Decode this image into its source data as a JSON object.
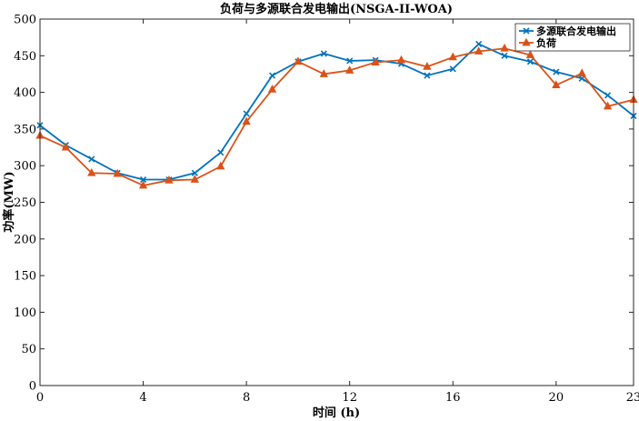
{
  "chart_data": {
    "type": "line",
    "title": "负荷与多源联合发电输出(NSGA-II-WOA)",
    "xlabel": "时间 (h)",
    "ylabel": "功率(MW)",
    "xlim": [
      0,
      23
    ],
    "ylim": [
      0,
      500
    ],
    "xticks": [
      0,
      4,
      8,
      12,
      16,
      20,
      23
    ],
    "yticks": [
      0,
      50,
      100,
      150,
      200,
      250,
      300,
      350,
      400,
      450,
      500
    ],
    "grid": false,
    "legend_position": "top-right",
    "x": [
      0,
      1,
      2,
      3,
      4,
      5,
      6,
      7,
      8,
      9,
      10,
      11,
      12,
      13,
      14,
      15,
      16,
      17,
      18,
      19,
      20,
      21,
      22,
      23
    ],
    "series": [
      {
        "name": "多源联合发电输出",
        "color": "#0072BD",
        "marker": "x",
        "values": [
          355,
          328,
          309,
          290,
          281,
          281,
          290,
          318,
          371,
          423,
          442,
          453,
          443,
          444,
          439,
          423,
          432,
          466,
          450,
          442,
          428,
          419,
          396,
          368
        ]
      },
      {
        "name": "负荷",
        "color": "#D95319",
        "marker": "triangle",
        "values": [
          341,
          325,
          290,
          289,
          273,
          280,
          281,
          299,
          360,
          404,
          442,
          425,
          430,
          441,
          444,
          435,
          448,
          456,
          460,
          451,
          410,
          426,
          381,
          390
        ]
      }
    ]
  }
}
